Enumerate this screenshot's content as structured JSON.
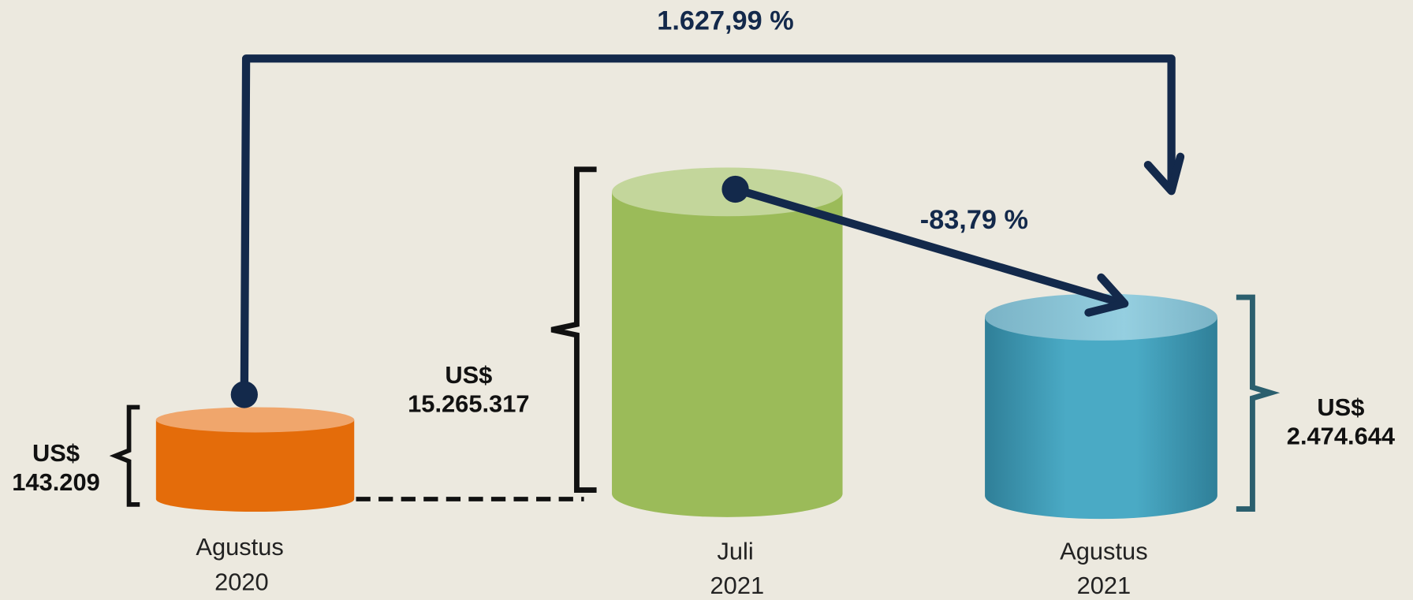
{
  "items": [
    {
      "period": [
        "Agustus",
        "2020"
      ],
      "value": [
        "US$",
        "143.209"
      ]
    },
    {
      "period": [
        "Juli",
        "2021"
      ],
      "value": [
        "US$",
        "15.265.317"
      ]
    },
    {
      "period": [
        "Agustus",
        "2021"
      ],
      "value": [
        "US$",
        "2.474.644"
      ]
    }
  ],
  "changes": [
    {
      "label": "1.627,99 %"
    },
    {
      "label": "-83,79 %"
    }
  ]
}
